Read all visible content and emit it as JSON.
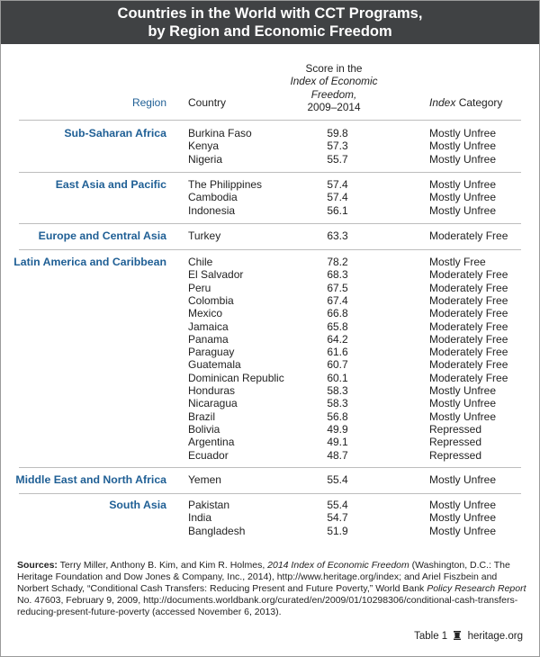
{
  "title_line1": "Countries in the World with CCT Programs,",
  "title_line2": "by Region and Economic Freedom",
  "headers": {
    "region": "Region",
    "country": "Country",
    "score_l1": "Score in the",
    "score_l2": "Index of Economic",
    "score_l3": "Freedom,",
    "score_l4": "2009–2014",
    "cat_italic": "Index",
    "cat_rest": " Category"
  },
  "groups": [
    {
      "region": "Sub-Saharan Africa",
      "rows": [
        {
          "country": "Burkina Faso",
          "score": "59.8",
          "category": "Mostly Unfree"
        },
        {
          "country": "Kenya",
          "score": "57.3",
          "category": "Mostly Unfree"
        },
        {
          "country": "Nigeria",
          "score": "55.7",
          "category": "Mostly Unfree"
        }
      ]
    },
    {
      "region": "East Asia and Pacific",
      "rows": [
        {
          "country": "The Philippines",
          "score": "57.4",
          "category": "Mostly Unfree"
        },
        {
          "country": "Cambodia",
          "score": "57.4",
          "category": "Mostly Unfree"
        },
        {
          "country": "Indonesia",
          "score": "56.1",
          "category": "Mostly Unfree"
        }
      ]
    },
    {
      "region": "Europe and Central Asia",
      "rows": [
        {
          "country": "Turkey",
          "score": "63.3",
          "category": "Moderately Free"
        }
      ]
    },
    {
      "region": "Latin America and Caribbean",
      "rows": [
        {
          "country": "Chile",
          "score": "78.2",
          "category": "Mostly Free"
        },
        {
          "country": "El Salvador",
          "score": "68.3",
          "category": "Moderately Free"
        },
        {
          "country": "Peru",
          "score": "67.5",
          "category": "Moderately Free"
        },
        {
          "country": "Colombia",
          "score": "67.4",
          "category": "Moderately Free"
        },
        {
          "country": "Mexico",
          "score": "66.8",
          "category": "Moderately Free"
        },
        {
          "country": "Jamaica",
          "score": "65.8",
          "category": "Moderately Free"
        },
        {
          "country": "Panama",
          "score": "64.2",
          "category": "Moderately Free"
        },
        {
          "country": "Paraguay",
          "score": "61.6",
          "category": "Moderately Free"
        },
        {
          "country": "Guatemala",
          "score": "60.7",
          "category": "Moderately Free"
        },
        {
          "country": "Dominican Republic",
          "score": "60.1",
          "category": "Moderately Free"
        },
        {
          "country": "Honduras",
          "score": "58.3",
          "category": "Mostly Unfree"
        },
        {
          "country": "Nicaragua",
          "score": "58.3",
          "category": "Mostly Unfree"
        },
        {
          "country": "Brazil",
          "score": "56.8",
          "category": "Mostly Unfree"
        },
        {
          "country": "Bolivia",
          "score": "49.9",
          "category": "Repressed"
        },
        {
          "country": "Argentina",
          "score": "49.1",
          "category": "Repressed"
        },
        {
          "country": "Ecuador",
          "score": "48.7",
          "category": "Repressed"
        }
      ]
    },
    {
      "region": "Middle East and North Africa",
      "rows": [
        {
          "country": "Yemen",
          "score": "55.4",
          "category": "Mostly Unfree"
        }
      ]
    },
    {
      "region": "South Asia",
      "rows": [
        {
          "country": "Pakistan",
          "score": "55.4",
          "category": "Mostly Unfree"
        },
        {
          "country": "India",
          "score": "54.7",
          "category": "Mostly Unfree"
        },
        {
          "country": "Bangladesh",
          "score": "51.9",
          "category": "Mostly Unfree"
        }
      ]
    }
  ],
  "sources": {
    "label": "Sources:",
    "p1": " Terry Miller, Anthony B. Kim, and Kim R. Holmes, ",
    "book": "2014 Index of Economic Freedom",
    "p2": " (Washington, D.C.: The Heritage Foundation and Dow Jones & Company, Inc., 2014), http://www.heritage.org/index; and Ariel Fiszbein and Norbert Schady, “Conditional Cash Transfers: Reducing Present and Future Poverty,” World Bank ",
    "report": "Policy Research Report",
    "p3": " No. 47603, February 9, 2009, http://documents.worldbank.org/curated/en/2009/01/10298306/conditional-cash-transfers-reducing-present-future-poverty (accessed November 6, 2013)."
  },
  "footer": {
    "table": "Table 1",
    "site": "heritage.org",
    "icon": "bell-icon"
  }
}
